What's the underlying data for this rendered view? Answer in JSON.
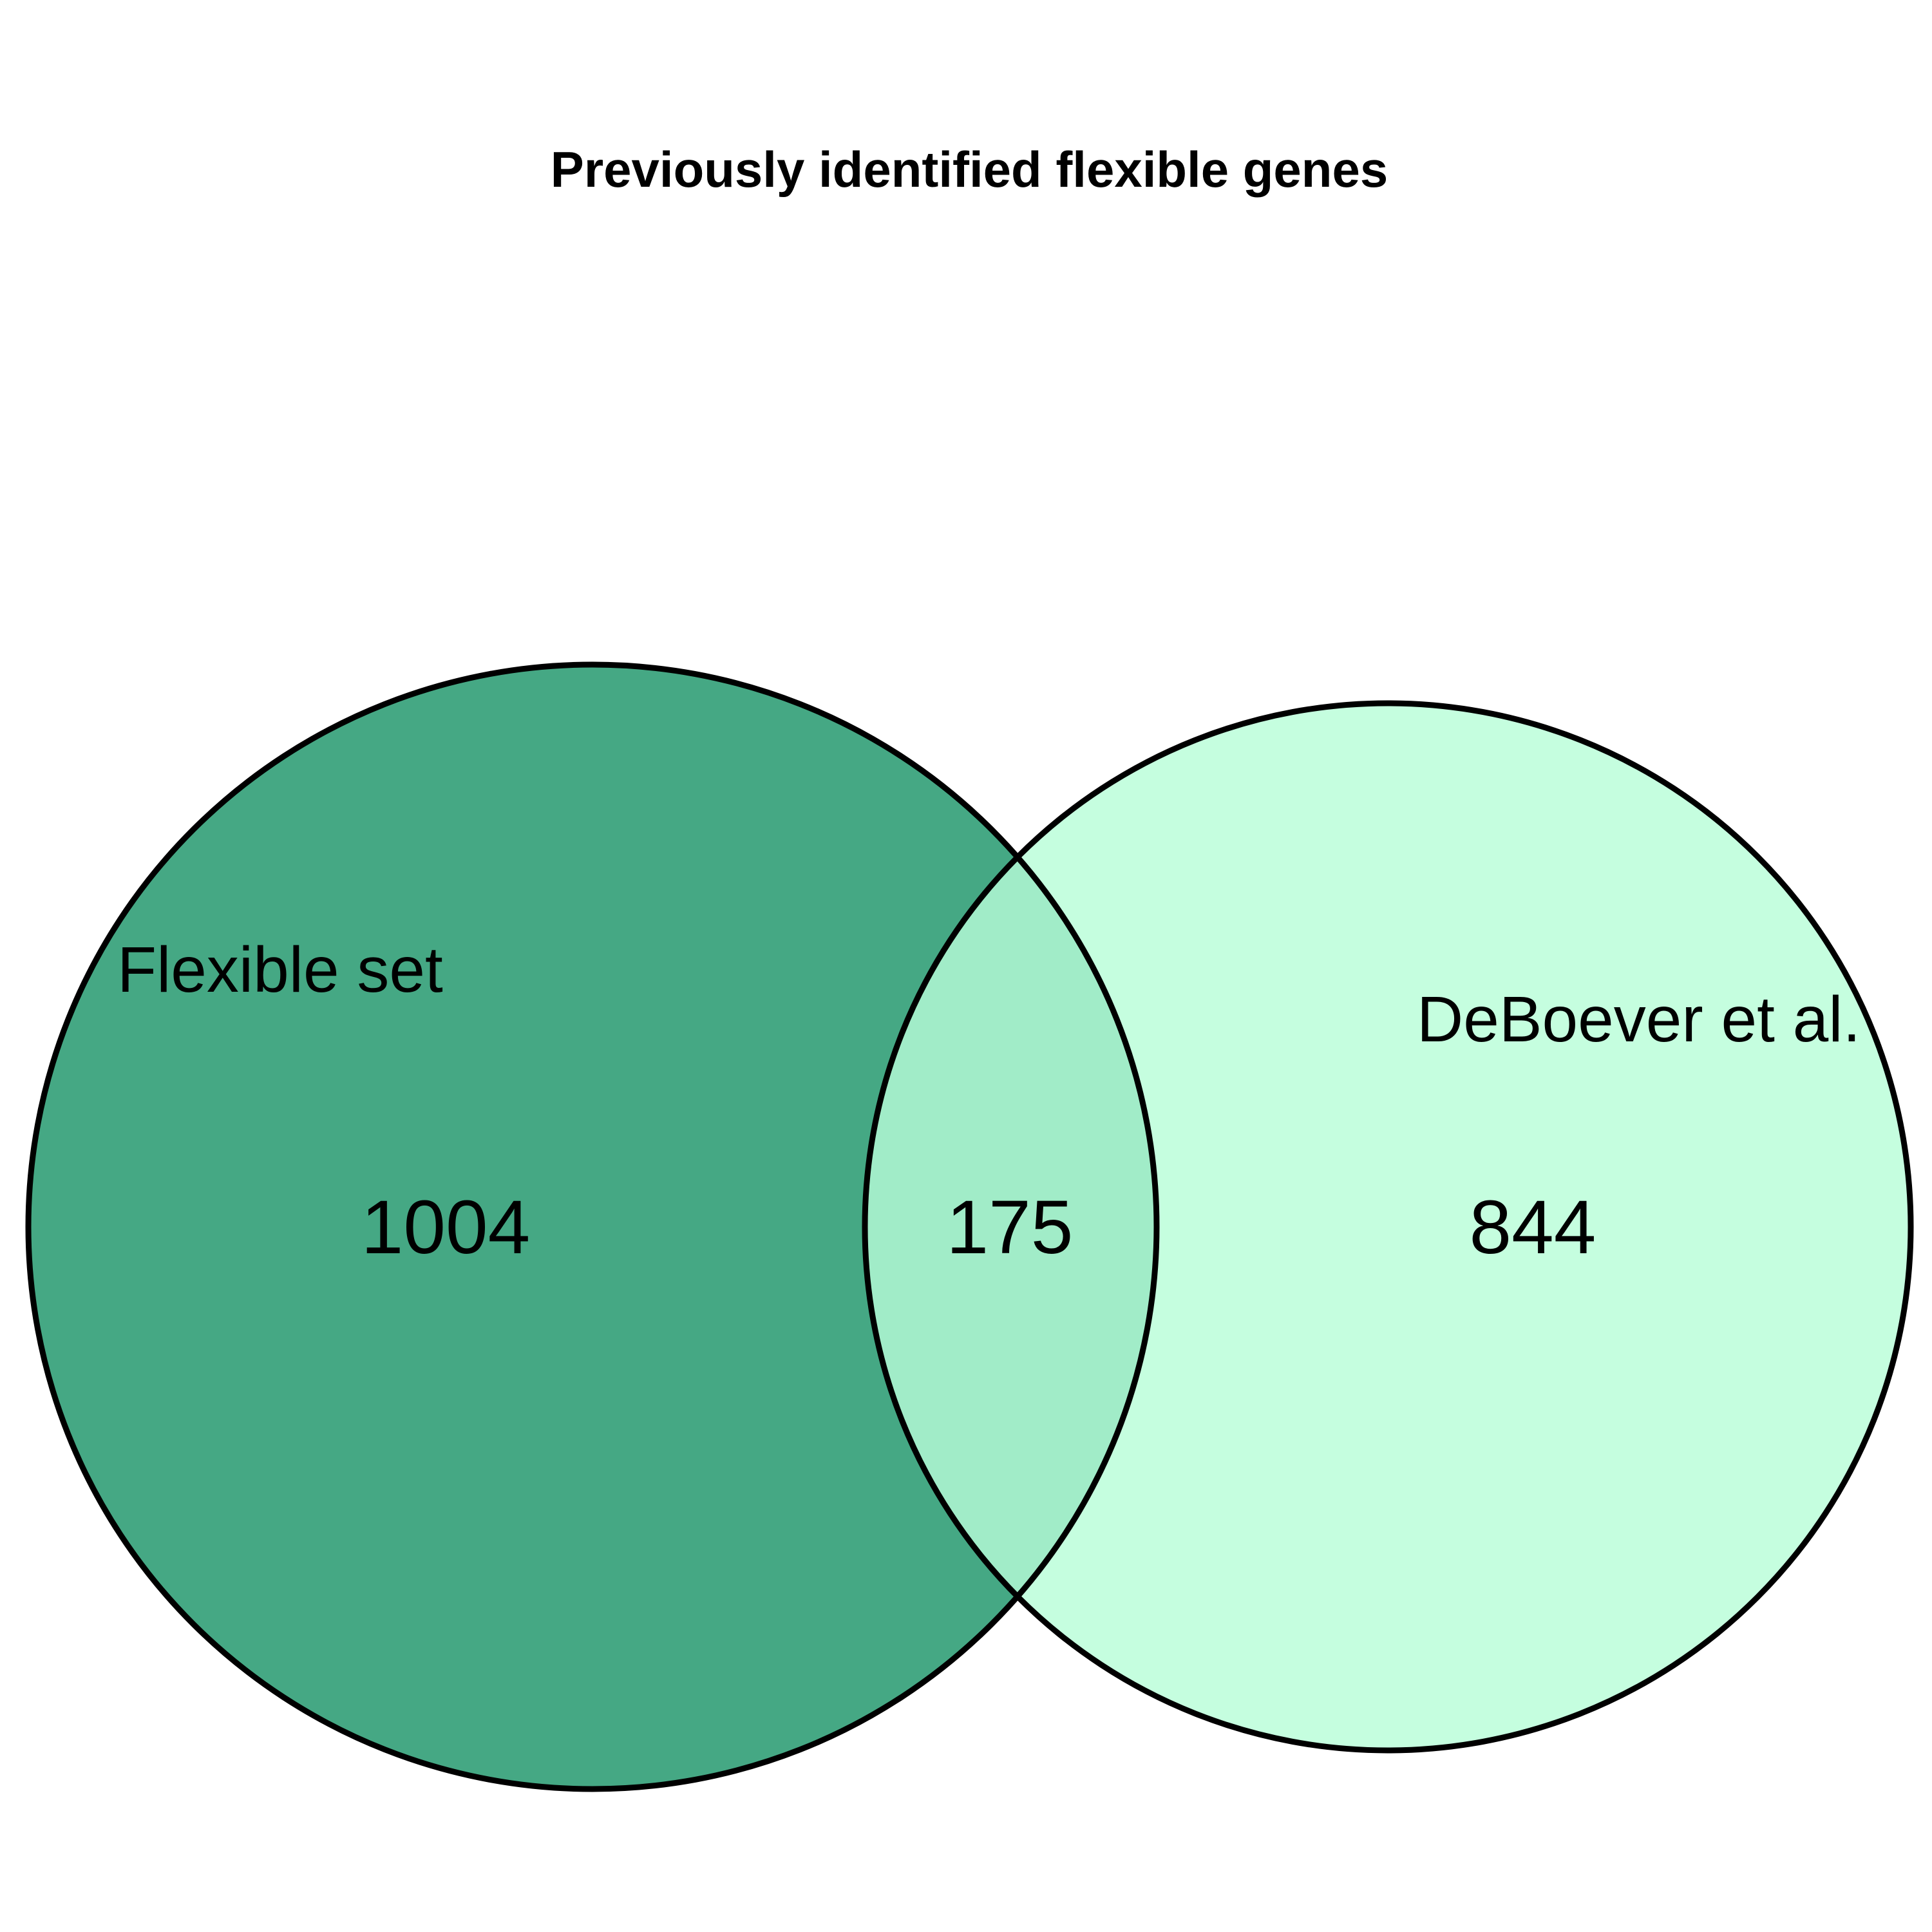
{
  "title": "Previously identified flexible genes",
  "sets": [
    {
      "label": "Flexible set",
      "color": "#45a884"
    },
    {
      "label": "DeBoever et al.",
      "color": "#c5fedf"
    }
  ],
  "regions": {
    "only_a": "1004",
    "intersection": "175",
    "only_b": "844"
  },
  "intersection_color": "#a1ecc8",
  "outline_color": "#000000"
}
